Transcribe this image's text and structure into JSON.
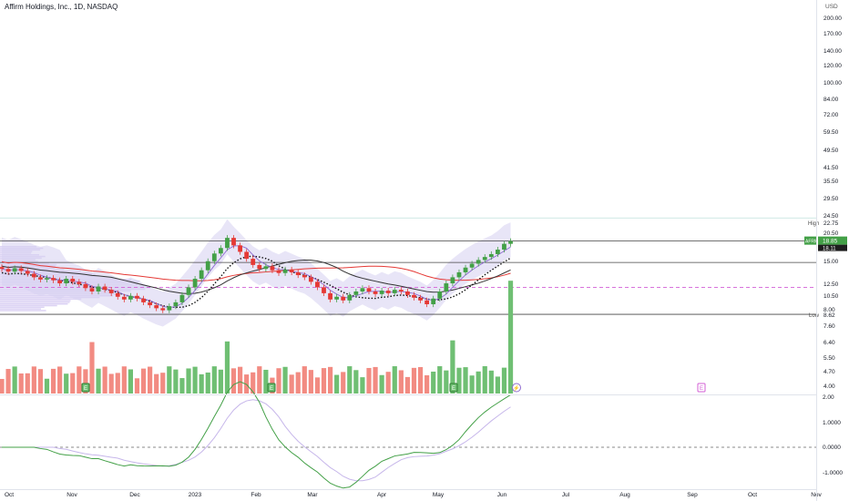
{
  "header": {
    "title": "Affirm Holdings, Inc., 1D, NASDAQ"
  },
  "chart_data": {
    "type": "candlestick",
    "symbol": "AFRM",
    "currency": "USD",
    "price_scale": "log",
    "x_ticks": [
      "Oct",
      "Nov",
      "Dec",
      "2023",
      "Feb",
      "Mar",
      "Apr",
      "May",
      "Jun",
      "Jul",
      "Aug",
      "Sep",
      "Oct",
      "Nov"
    ],
    "price_ticks": [
      "200.00",
      "170.00",
      "140.00",
      "120.00",
      "100.00",
      "84.00",
      "72.00",
      "59.50",
      "49.50",
      "41.50",
      "35.50",
      "29.50",
      "24.50",
      "20.50",
      "15.00",
      "12.50",
      "10.50",
      "8.00",
      "7.60",
      "6.40",
      "5.50",
      "4.70",
      "4.00"
    ],
    "price_labels": {
      "high_label": "High",
      "high_value": "22.75",
      "symbol_label": "AFRM",
      "last_value": "18.85",
      "last_value_2": "18.11",
      "low_label": "Low",
      "low_value": "8.62"
    },
    "levels": [
      {
        "price": 18.85,
        "style": "solid"
      },
      {
        "price": 15.0,
        "style": "solid"
      },
      {
        "price": 11.5,
        "style": "dashed"
      },
      {
        "price": 8.62,
        "style": "solid"
      }
    ],
    "close_series": [
      14.0,
      13.6,
      14.1,
      13.7,
      13.3,
      12.8,
      12.5,
      12.7,
      12.4,
      12.0,
      12.6,
      12.2,
      11.9,
      11.4,
      11.0,
      11.6,
      11.2,
      10.8,
      10.4,
      10.1,
      10.5,
      10.2,
      9.8,
      9.5,
      9.2,
      9.0,
      9.4,
      9.8,
      10.6,
      11.5,
      12.6,
      13.8,
      15.2,
      16.5,
      17.5,
      19.5,
      18.0,
      16.8,
      15.6,
      14.6,
      14.0,
      14.4,
      13.8,
      13.4,
      13.9,
      13.5,
      13.1,
      12.8,
      12.2,
      11.5,
      10.8,
      10.1,
      10.4,
      10.0,
      10.6,
      11.0,
      11.4,
      11.0,
      10.7,
      11.1,
      10.8,
      11.2,
      11.0,
      10.6,
      10.3,
      10.0,
      9.6,
      10.2,
      11.0,
      12.0,
      12.8,
      13.5,
      14.2,
      14.8,
      15.4,
      15.9,
      16.4,
      17.2,
      18.3,
      18.85
    ],
    "volume_label_count": 80,
    "earnings_markers": [
      "E",
      "E",
      "E",
      "E"
    ],
    "split_marker": "⚡",
    "macd_ticks": [
      "2.00",
      "1.0000",
      "0.0000",
      "-1.0000"
    ]
  }
}
